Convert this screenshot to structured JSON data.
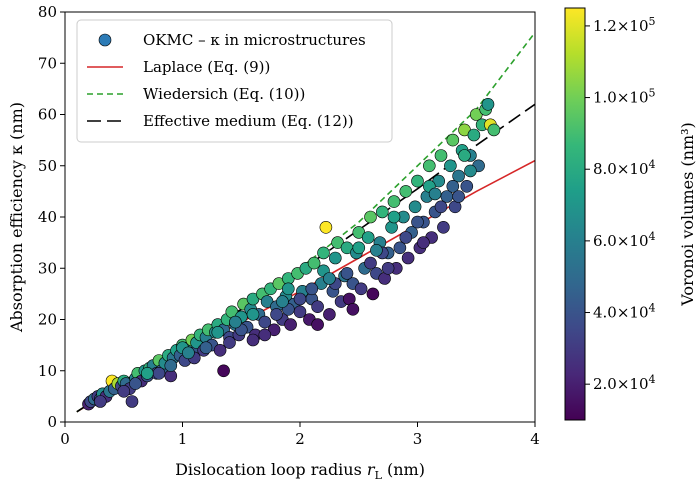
{
  "chart_data": {
    "type": "scatter",
    "title": "",
    "xlabel": "Dislocation loop radius",
    "xlabel_symbol": "r",
    "xlabel_subscript": "L",
    "xlabel_unit": "(nm)",
    "ylabel": "Absorption efficiency κ (nm)",
    "xlim": [
      0,
      4
    ],
    "ylim": [
      0,
      80
    ],
    "xticks": [
      0,
      1,
      2,
      3,
      4
    ],
    "yticks": [
      0,
      10,
      20,
      30,
      40,
      50,
      60,
      70,
      80
    ],
    "grid": false,
    "legend_position": "top-left",
    "legend": [
      {
        "label": "OKMC – κ in microstructures",
        "kind": "marker",
        "color": "#2c7bb6"
      },
      {
        "label": "Laplace (Eq. (9))",
        "kind": "solid",
        "color": "#d62728"
      },
      {
        "label": "Wiedersich (Eq. (10))",
        "kind": "dashed",
        "color": "#2ca02c"
      },
      {
        "label": "Effective medium (Eq. (12))",
        "kind": "longdash",
        "color": "#000000"
      }
    ],
    "colorbar": {
      "label": "Voronoi volumes (nm³)",
      "colormap": "viridis",
      "range": [
        10000,
        125000
      ],
      "ticks": [
        {
          "value": 20000,
          "mantissa": "2.0",
          "exponent": "4"
        },
        {
          "value": 40000,
          "mantissa": "4.0",
          "exponent": "4"
        },
        {
          "value": 60000,
          "mantissa": "6.0",
          "exponent": "4"
        },
        {
          "value": 80000,
          "mantissa": "8.0",
          "exponent": "4"
        },
        {
          "value": 100000,
          "mantissa": "1.0",
          "exponent": "5"
        },
        {
          "value": 120000,
          "mantissa": "1.2",
          "exponent": "5"
        }
      ]
    },
    "lines": [
      {
        "name": "Laplace (Eq. (9))",
        "style": "solid",
        "color": "#d62728",
        "x": [
          0.1,
          0.5,
          1.0,
          1.5,
          2.0,
          2.5,
          3.0,
          3.5,
          4.0
        ],
        "y": [
          2,
          7.5,
          13.5,
          19.5,
          25.5,
          32,
          38.5,
          45,
          51
        ]
      },
      {
        "name": "Wiedersich (Eq. (10))",
        "style": "dashed",
        "color": "#2ca02c",
        "x": [
          0.1,
          0.5,
          1.0,
          1.5,
          2.0,
          2.5,
          3.0,
          3.5,
          4.0
        ],
        "y": [
          2,
          8,
          15,
          22,
          30,
          39,
          50,
          61,
          76
        ]
      },
      {
        "name": "Effective medium (Eq. (12))",
        "style": "longdash",
        "color": "#000000",
        "x": [
          0.1,
          0.5,
          1.0,
          1.5,
          2.0,
          2.5,
          3.0,
          3.5,
          4.0
        ],
        "y": [
          2,
          8,
          15,
          22,
          29.5,
          37.5,
          45.5,
          54,
          62
        ]
      }
    ],
    "points": [
      [
        0.2,
        3.5,
        20000.0
      ],
      [
        0.22,
        4,
        35000.0
      ],
      [
        0.25,
        4.5,
        50000.0
      ],
      [
        0.28,
        5,
        30000.0
      ],
      [
        0.3,
        4.5,
        40000.0
      ],
      [
        0.32,
        5.5,
        65000.0
      ],
      [
        0.35,
        5,
        25000.0
      ],
      [
        0.38,
        6,
        55000.0
      ],
      [
        0.4,
        8,
        125000.0
      ],
      [
        0.42,
        6.5,
        45000.0
      ],
      [
        0.45,
        7.5,
        110000.0
      ],
      [
        0.48,
        7,
        35000.0
      ],
      [
        0.5,
        8,
        80000.0
      ],
      [
        0.52,
        7.5,
        50000.0
      ],
      [
        0.55,
        6.5,
        30000.0
      ],
      [
        0.57,
        4,
        30000.0
      ],
      [
        0.6,
        8.5,
        60000.0
      ],
      [
        0.62,
        9.5,
        90000.0
      ],
      [
        0.65,
        8,
        25000.0
      ],
      [
        0.68,
        10,
        70000.0
      ],
      [
        0.7,
        9,
        40000.0
      ],
      [
        0.72,
        10.5,
        85000.0
      ],
      [
        0.75,
        11,
        60000.0
      ],
      [
        0.78,
        9.5,
        35000.0
      ],
      [
        0.8,
        12,
        95000.0
      ],
      [
        0.82,
        10,
        45000.0
      ],
      [
        0.85,
        11.5,
        65000.0
      ],
      [
        0.88,
        13,
        80000.0
      ],
      [
        0.9,
        9,
        25000.0
      ],
      [
        0.92,
        12.5,
        55000.0
      ],
      [
        0.95,
        14,
        75000.0
      ],
      [
        0.98,
        13,
        45000.0
      ],
      [
        1.0,
        15,
        90000.0
      ],
      [
        1.02,
        12,
        35000.0
      ],
      [
        1.05,
        14.5,
        60000.0
      ],
      [
        1.08,
        16,
        100000.0
      ],
      [
        1.1,
        13.5,
        40000.0
      ],
      [
        1.12,
        15.5,
        70000.0
      ],
      [
        1.15,
        17,
        85000.0
      ],
      [
        1.18,
        14,
        30000.0
      ],
      [
        1.2,
        16.5,
        60000.0
      ],
      [
        1.22,
        18,
        90000.0
      ],
      [
        1.25,
        15,
        40000.0
      ],
      [
        1.28,
        17.5,
        65000.0
      ],
      [
        1.3,
        19,
        80000.0
      ],
      [
        1.32,
        14,
        25000.0
      ],
      [
        1.35,
        18,
        50000.0
      ],
      [
        1.38,
        20,
        85000.0
      ],
      [
        1.4,
        16.5,
        35000.0
      ],
      [
        1.42,
        21.5,
        90000.0
      ],
      [
        1.45,
        19,
        55000.0
      ],
      [
        1.48,
        17,
        30000.0
      ],
      [
        1.5,
        20.5,
        70000.0
      ],
      [
        1.52,
        23,
        95000.0
      ],
      [
        1.55,
        18.5,
        40000.0
      ],
      [
        1.58,
        22,
        65000.0
      ],
      [
        1.6,
        24,
        80000.0
      ],
      [
        1.62,
        17,
        25000.0
      ],
      [
        1.65,
        21,
        50000.0
      ],
      [
        1.68,
        25,
        90000.0
      ],
      [
        1.7,
        19.5,
        35000.0
      ],
      [
        1.72,
        23.5,
        60000.0
      ],
      [
        1.75,
        26,
        85000.0
      ],
      [
        1.78,
        18,
        20000.0
      ],
      [
        1.8,
        22.5,
        50000.0
      ],
      [
        1.82,
        27,
        95000.0
      ],
      [
        1.85,
        20,
        30000.0
      ],
      [
        1.88,
        24.5,
        65000.0
      ],
      [
        1.9,
        28,
        85000.0
      ],
      [
        1.92,
        19,
        20000.0
      ],
      [
        1.95,
        23,
        45000.0
      ],
      [
        1.98,
        29,
        90000.0
      ],
      [
        2.0,
        21.5,
        30000.0
      ],
      [
        2.02,
        25.5,
        60000.0
      ],
      [
        2.05,
        30,
        80000.0
      ],
      [
        2.08,
        20,
        18000.0
      ],
      [
        2.1,
        24,
        40000.0
      ],
      [
        2.12,
        31,
        90000.0
      ],
      [
        2.15,
        22.5,
        30000.0
      ],
      [
        2.18,
        27,
        60000.0
      ],
      [
        2.2,
        33,
        85000.0
      ],
      [
        2.22,
        38,
        125000.0
      ],
      [
        2.25,
        21,
        20000.0
      ],
      [
        2.28,
        25.5,
        40000.0
      ],
      [
        2.3,
        32,
        70000.0
      ],
      [
        2.32,
        35,
        90000.0
      ],
      [
        2.35,
        23.5,
        30000.0
      ],
      [
        2.38,
        28.5,
        55000.0
      ],
      [
        2.4,
        34,
        80000.0
      ],
      [
        2.42,
        24,
        15000.0
      ],
      [
        2.45,
        27,
        40000.0
      ],
      [
        2.48,
        33,
        65000.0
      ],
      [
        2.5,
        37,
        90000.0
      ],
      [
        2.52,
        26,
        30000.0
      ],
      [
        2.55,
        30,
        50000.0
      ],
      [
        2.58,
        36,
        75000.0
      ],
      [
        2.6,
        40,
        95000.0
      ],
      [
        2.62,
        25,
        12000.0
      ],
      [
        2.65,
        29,
        35000.0
      ],
      [
        2.68,
        35,
        60000.0
      ],
      [
        2.7,
        41,
        85000.0
      ],
      [
        2.72,
        28,
        25000.0
      ],
      [
        2.75,
        33,
        45000.0
      ],
      [
        2.78,
        38,
        70000.0
      ],
      [
        2.8,
        43,
        90000.0
      ],
      [
        2.82,
        30,
        25000.0
      ],
      [
        2.85,
        34,
        40000.0
      ],
      [
        2.88,
        40,
        65000.0
      ],
      [
        2.9,
        45,
        90000.0
      ],
      [
        2.92,
        32,
        25000.0
      ],
      [
        2.95,
        37,
        45000.0
      ],
      [
        2.98,
        42,
        65000.0
      ],
      [
        3.0,
        47,
        85000.0
      ],
      [
        3.02,
        34,
        25000.0
      ],
      [
        3.05,
        39,
        40000.0
      ],
      [
        3.08,
        44,
        60000.0
      ],
      [
        3.1,
        50,
        90000.0
      ],
      [
        3.12,
        36,
        25000.0
      ],
      [
        3.15,
        41,
        40000.0
      ],
      [
        3.18,
        47,
        65000.0
      ],
      [
        3.2,
        52,
        90000.0
      ],
      [
        3.22,
        38,
        30000.0
      ],
      [
        3.25,
        44,
        45000.0
      ],
      [
        3.28,
        50,
        70000.0
      ],
      [
        3.3,
        55,
        95000.0
      ],
      [
        3.32,
        42,
        35000.0
      ],
      [
        3.35,
        48,
        55000.0
      ],
      [
        3.38,
        53,
        75000.0
      ],
      [
        3.4,
        57,
        105000.0
      ],
      [
        3.42,
        46,
        40000.0
      ],
      [
        3.45,
        52,
        60000.0
      ],
      [
        3.48,
        56,
        80000.0
      ],
      [
        3.5,
        60,
        100000.0
      ],
      [
        3.52,
        50,
        50000.0
      ],
      [
        3.55,
        58,
        85000.0
      ],
      [
        3.58,
        61,
        90000.0
      ],
      [
        3.6,
        62,
        70000.0
      ],
      [
        3.62,
        58,
        120000.0
      ],
      [
        3.65,
        57,
        90000.0
      ],
      [
        0.3,
        4,
        30000.0
      ],
      [
        0.6,
        7.5,
        40000.0
      ],
      [
        0.9,
        11,
        50000.0
      ],
      [
        1.2,
        14.5,
        45000.0
      ],
      [
        1.5,
        18,
        40000.0
      ],
      [
        1.8,
        21,
        35000.0
      ],
      [
        2.1,
        26,
        40000.0
      ],
      [
        2.4,
        29,
        40000.0
      ],
      [
        2.7,
        33,
        35000.0
      ],
      [
        3.0,
        39,
        40000.0
      ],
      [
        3.3,
        46,
        45000.0
      ],
      [
        0.5,
        6,
        30000.0
      ],
      [
        0.8,
        9.5,
        35000.0
      ],
      [
        1.1,
        12.5,
        30000.0
      ],
      [
        1.4,
        15.5,
        30000.0
      ],
      [
        1.7,
        17,
        25000.0
      ],
      [
        2.0,
        24,
        35000.0
      ],
      [
        2.3,
        27,
        35000.0
      ],
      [
        2.6,
        31,
        30000.0
      ],
      [
        2.9,
        36,
        35000.0
      ],
      [
        3.2,
        42,
        35000.0
      ],
      [
        1.35,
        10,
        12000.0
      ],
      [
        1.6,
        16,
        25000.0
      ],
      [
        1.9,
        22,
        40000.0
      ],
      [
        2.15,
        19,
        15000.0
      ],
      [
        2.45,
        22,
        15000.0
      ],
      [
        2.75,
        30,
        30000.0
      ],
      [
        3.05,
        35,
        25000.0
      ],
      [
        3.35,
        44,
        40000.0
      ],
      [
        1.0,
        14.5,
        70000.0
      ],
      [
        1.3,
        17.5,
        70000.0
      ],
      [
        1.6,
        21,
        70000.0
      ],
      [
        1.9,
        26,
        70000.0
      ],
      [
        2.2,
        29.5,
        70000.0
      ],
      [
        2.5,
        34,
        75000.0
      ],
      [
        2.8,
        40,
        75000.0
      ],
      [
        3.1,
        46,
        75000.0
      ],
      [
        3.4,
        52,
        80000.0
      ],
      [
        0.7,
        9.5,
        75000.0
      ],
      [
        1.05,
        13.5,
        60000.0
      ],
      [
        1.45,
        19.5,
        60000.0
      ],
      [
        1.85,
        23.5,
        60000.0
      ],
      [
        2.25,
        28,
        60000.0
      ],
      [
        2.65,
        33.5,
        60000.0
      ],
      [
        3.15,
        44.5,
        60000.0
      ],
      [
        3.45,
        49,
        65000.0
      ]
    ]
  }
}
